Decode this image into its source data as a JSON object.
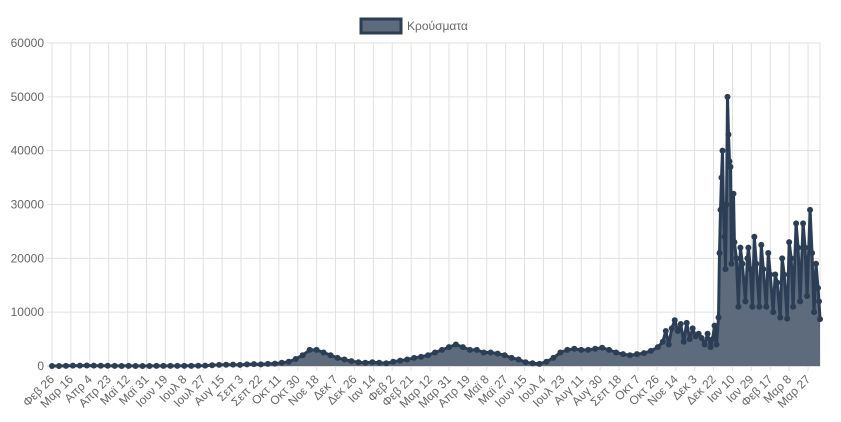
{
  "chart_data": {
    "type": "line",
    "fill": true,
    "legend": {
      "position": "top",
      "label": "Κρούσματα"
    },
    "colors": {
      "line": "#2c3e55",
      "fill": "#5e6b7d",
      "grid": "#e1e1e1"
    },
    "grid": true,
    "ylim": [
      0,
      60000
    ],
    "y_ticks": [
      "0",
      "10000",
      "20000",
      "30000",
      "40000",
      "50000",
      "60000"
    ],
    "xlim": [
      "2020-02-26",
      "2022-04-08"
    ],
    "x_tick_labels": [
      "Φεβ 26",
      "Μαρ 16",
      "Απρ 4",
      "Απρ 23",
      "Μαϊ 12",
      "Μαϊ 31",
      "Ιουν 19",
      "Ιουλ 8",
      "Ιουλ 27",
      "Αυγ 15",
      "Σεπ 3",
      "Σεπ 22",
      "Οκτ 11",
      "Οκτ 30",
      "Νοε 18",
      "Δεκ 7",
      "Δεκ 26",
      "Ιαν 14",
      "Φεβ 2",
      "Φεβ 21",
      "Μαρ 12",
      "Μαρ 31",
      "Απρ 19",
      "Μαϊ 8",
      "Μαϊ 27",
      "Ιουν 15",
      "Ιουλ 4",
      "Ιουλ 23",
      "Αυγ 11",
      "Αυγ 30",
      "Σεπ 18",
      "Οκτ 7",
      "Οκτ 26",
      "Νοε 14",
      "Δεκ 3",
      "Δεκ 22",
      "Ιαν 10",
      "Ιαν 29",
      "Φεβ 17",
      "Μαρ 8",
      "Μαρ 27"
    ],
    "series": [
      {
        "name": "Κρούσματα",
        "points": [
          [
            "2020-02-26",
            1
          ],
          [
            "2020-03-04",
            5
          ],
          [
            "2020-03-11",
            30
          ],
          [
            "2020-03-18",
            60
          ],
          [
            "2020-03-25",
            80
          ],
          [
            "2020-04-01",
            100
          ],
          [
            "2020-04-08",
            60
          ],
          [
            "2020-04-15",
            50
          ],
          [
            "2020-04-22",
            40
          ],
          [
            "2020-04-29",
            20
          ],
          [
            "2020-05-06",
            10
          ],
          [
            "2020-05-13",
            15
          ],
          [
            "2020-05-20",
            10
          ],
          [
            "2020-05-27",
            5
          ],
          [
            "2020-06-03",
            10
          ],
          [
            "2020-06-10",
            15
          ],
          [
            "2020-06-17",
            20
          ],
          [
            "2020-06-24",
            15
          ],
          [
            "2020-07-01",
            25
          ],
          [
            "2020-07-08",
            30
          ],
          [
            "2020-07-15",
            30
          ],
          [
            "2020-07-22",
            40
          ],
          [
            "2020-07-29",
            70
          ],
          [
            "2020-08-05",
            150
          ],
          [
            "2020-08-12",
            200
          ],
          [
            "2020-08-19",
            240
          ],
          [
            "2020-08-26",
            250
          ],
          [
            "2020-09-02",
            200
          ],
          [
            "2020-09-09",
            300
          ],
          [
            "2020-09-16",
            350
          ],
          [
            "2020-09-23",
            300
          ],
          [
            "2020-09-30",
            400
          ],
          [
            "2020-10-07",
            450
          ],
          [
            "2020-10-14",
            600
          ],
          [
            "2020-10-21",
            800
          ],
          [
            "2020-10-28",
            1300
          ],
          [
            "2020-11-04",
            2000
          ],
          [
            "2020-11-11",
            3000
          ],
          [
            "2020-11-18",
            3000
          ],
          [
            "2020-11-25",
            2500
          ],
          [
            "2020-12-02",
            2000
          ],
          [
            "2020-12-09",
            1500
          ],
          [
            "2020-12-16",
            1200
          ],
          [
            "2020-12-23",
            900
          ],
          [
            "2020-12-30",
            700
          ],
          [
            "2021-01-06",
            600
          ],
          [
            "2021-01-13",
            700
          ],
          [
            "2021-01-20",
            600
          ],
          [
            "2021-01-27",
            500
          ],
          [
            "2021-02-03",
            800
          ],
          [
            "2021-02-10",
            1000
          ],
          [
            "2021-02-17",
            1200
          ],
          [
            "2021-02-24",
            1500
          ],
          [
            "2021-03-03",
            1700
          ],
          [
            "2021-03-10",
            2000
          ],
          [
            "2021-03-17",
            2500
          ],
          [
            "2021-03-24",
            3000
          ],
          [
            "2021-03-31",
            3500
          ],
          [
            "2021-04-07",
            4000
          ],
          [
            "2021-04-14",
            3500
          ],
          [
            "2021-04-21",
            3000
          ],
          [
            "2021-04-28",
            3000
          ],
          [
            "2021-05-05",
            2500
          ],
          [
            "2021-05-12",
            2500
          ],
          [
            "2021-05-19",
            2300
          ],
          [
            "2021-05-26",
            2000
          ],
          [
            "2021-06-02",
            1500
          ],
          [
            "2021-06-09",
            1200
          ],
          [
            "2021-06-16",
            700
          ],
          [
            "2021-06-23",
            500
          ],
          [
            "2021-06-30",
            400
          ],
          [
            "2021-07-07",
            800
          ],
          [
            "2021-07-14",
            1500
          ],
          [
            "2021-07-21",
            2500
          ],
          [
            "2021-07-28",
            3000
          ],
          [
            "2021-08-04",
            3200
          ],
          [
            "2021-08-11",
            3000
          ],
          [
            "2021-08-18",
            3000
          ],
          [
            "2021-08-25",
            3200
          ],
          [
            "2021-09-01",
            3400
          ],
          [
            "2021-09-08",
            3000
          ],
          [
            "2021-09-15",
            2500
          ],
          [
            "2021-09-22",
            2200
          ],
          [
            "2021-09-29",
            2000
          ],
          [
            "2021-10-06",
            2200
          ],
          [
            "2021-10-13",
            2400
          ],
          [
            "2021-10-20",
            2800
          ],
          [
            "2021-10-27",
            3500
          ],
          [
            "2021-11-01",
            4500
          ],
          [
            "2021-11-04",
            6500
          ],
          [
            "2021-11-07",
            4000
          ],
          [
            "2021-11-10",
            7000
          ],
          [
            "2021-11-13",
            8500
          ],
          [
            "2021-11-16",
            6500
          ],
          [
            "2021-11-19",
            7800
          ],
          [
            "2021-11-22",
            4500
          ],
          [
            "2021-11-25",
            8000
          ],
          [
            "2021-11-28",
            5000
          ],
          [
            "2021-12-01",
            7000
          ],
          [
            "2021-12-04",
            5500
          ],
          [
            "2021-12-07",
            6000
          ],
          [
            "2021-12-10",
            5200
          ],
          [
            "2021-12-13",
            4000
          ],
          [
            "2021-12-16",
            6000
          ],
          [
            "2021-12-19",
            3500
          ],
          [
            "2021-12-21",
            5000
          ],
          [
            "2021-12-23",
            7500
          ],
          [
            "2021-12-25",
            4000
          ],
          [
            "2021-12-27",
            9000
          ],
          [
            "2021-12-28",
            21000
          ],
          [
            "2021-12-29",
            29000
          ],
          [
            "2021-12-30",
            35000
          ],
          [
            "2021-12-31",
            40000
          ],
          [
            "2022-01-01",
            29000
          ],
          [
            "2022-01-02",
            24000
          ],
          [
            "2022-01-03",
            18000
          ],
          [
            "2022-01-04",
            30000
          ],
          [
            "2022-01-05",
            50000
          ],
          [
            "2022-01-06",
            43000
          ],
          [
            "2022-01-07",
            38000
          ],
          [
            "2022-01-08",
            37000
          ],
          [
            "2022-01-09",
            19000
          ],
          [
            "2022-01-10",
            26000
          ],
          [
            "2022-01-11",
            32000
          ],
          [
            "2022-01-12",
            23000
          ],
          [
            "2022-01-14",
            20000
          ],
          [
            "2022-01-16",
            11000
          ],
          [
            "2022-01-18",
            22000
          ],
          [
            "2022-01-20",
            19000
          ],
          [
            "2022-01-23",
            12000
          ],
          [
            "2022-01-25",
            20000
          ],
          [
            "2022-01-26",
            22000
          ],
          [
            "2022-01-28",
            18000
          ],
          [
            "2022-01-30",
            11000
          ],
          [
            "2022-02-01",
            24000
          ],
          [
            "2022-02-03",
            19000
          ],
          [
            "2022-02-06",
            11000
          ],
          [
            "2022-02-08",
            22500
          ],
          [
            "2022-02-10",
            18000
          ],
          [
            "2022-02-13",
            11000
          ],
          [
            "2022-02-15",
            21000
          ],
          [
            "2022-02-17",
            17000
          ],
          [
            "2022-02-20",
            10000
          ],
          [
            "2022-02-22",
            17000
          ],
          [
            "2022-02-24",
            15500
          ],
          [
            "2022-02-27",
            9000
          ],
          [
            "2022-03-01",
            20000
          ],
          [
            "2022-03-03",
            17000
          ],
          [
            "2022-03-06",
            8800
          ],
          [
            "2022-03-08",
            23000
          ],
          [
            "2022-03-10",
            20000
          ],
          [
            "2022-03-12",
            11000
          ],
          [
            "2022-03-15",
            26500
          ],
          [
            "2022-03-17",
            22000
          ],
          [
            "2022-03-19",
            12000
          ],
          [
            "2022-03-22",
            26500
          ],
          [
            "2022-03-24",
            22000
          ],
          [
            "2022-03-26",
            13000
          ],
          [
            "2022-03-29",
            29000
          ],
          [
            "2022-03-31",
            21000
          ],
          [
            "2022-04-02",
            10000
          ],
          [
            "2022-04-04",
            19000
          ],
          [
            "2022-04-06",
            14500
          ],
          [
            "2022-04-07",
            12000
          ],
          [
            "2022-04-08",
            8700
          ]
        ]
      }
    ]
  }
}
